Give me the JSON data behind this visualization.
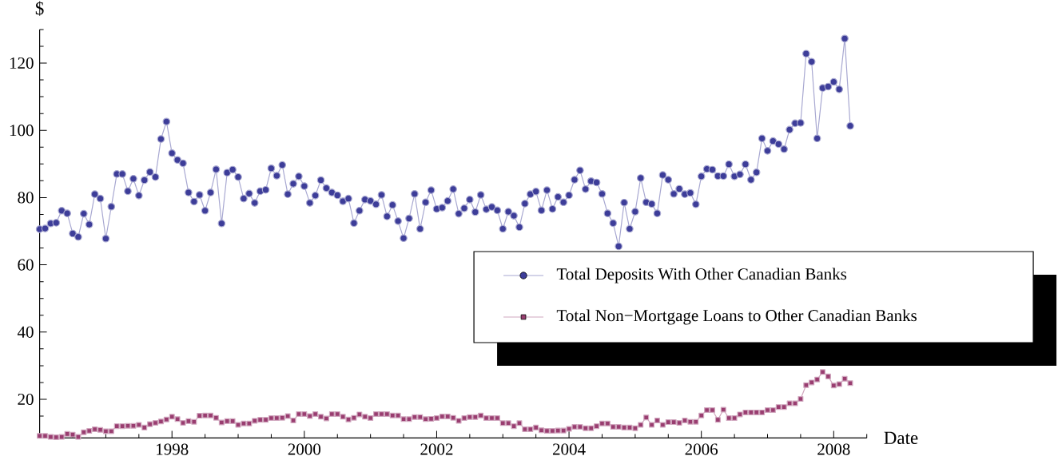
{
  "chart_data": {
    "type": "line",
    "xlabel": "Date",
    "ylabel": "$",
    "legend": "right",
    "marker": "square",
    "xlim": [
      "1996-01",
      "2008-07"
    ],
    "ylim": [
      8.5,
      130
    ],
    "xticks": [
      {
        "value": "1996-07",
        "label": null
      },
      {
        "value": "1997-01",
        "label": null
      },
      {
        "value": "1997-07",
        "label": null
      },
      "1998",
      {
        "value": "1998-07",
        "label": null
      },
      {
        "value": "1999-01",
        "label": null
      },
      {
        "value": "1999-07",
        "label": null
      },
      "2000",
      {
        "value": "2000-07",
        "label": null
      },
      {
        "value": "2001-01",
        "label": null
      },
      {
        "value": "2001-07",
        "label": null
      },
      "2002",
      {
        "value": "2002-07",
        "label": null
      },
      {
        "value": "2003-01",
        "label": null
      },
      {
        "value": "2003-07",
        "label": null
      },
      "2004",
      {
        "value": "2004-07",
        "label": null
      },
      {
        "value": "2005-01",
        "label": null
      },
      {
        "value": "2005-07",
        "label": null
      },
      "2006",
      {
        "value": "2006-07",
        "label": null
      },
      {
        "value": "2007-01",
        "label": null
      },
      {
        "value": "2007-07",
        "label": null
      },
      "2008",
      {
        "value": "2008-07",
        "label": null
      }
    ],
    "yticks": [
      {
        "value": 15,
        "label": null
      },
      20,
      {
        "value": 25,
        "label": null
      },
      {
        "value": 30,
        "label": null
      },
      {
        "value": 35,
        "label": null
      },
      40,
      {
        "value": 45,
        "label": null
      },
      {
        "value": 50,
        "label": null
      },
      {
        "value": 55,
        "label": null
      },
      60,
      {
        "value": 65,
        "label": null
      },
      {
        "value": 70,
        "label": null
      },
      {
        "value": 75,
        "label": null
      },
      80,
      {
        "value": 85,
        "label": null
      },
      {
        "value": 90,
        "label": null
      },
      {
        "value": 95,
        "label": null
      },
      100,
      {
        "value": 105,
        "label": null
      },
      {
        "value": 110,
        "label": null
      },
      {
        "value": 115,
        "label": null
      },
      120,
      {
        "value": 125,
        "label": null
      },
      {
        "value": 130,
        "label": null
      }
    ],
    "x": [
      "1996-01",
      "1996-02",
      "1996-03",
      "1996-04",
      "1996-05",
      "1996-06",
      "1996-07",
      "1996-08",
      "1996-09",
      "1996-10",
      "1996-11",
      "1996-12",
      "1997-01",
      "1997-02",
      "1997-03",
      "1997-04",
      "1997-05",
      "1997-06",
      "1997-07",
      "1997-08",
      "1997-09",
      "1997-10",
      "1997-11",
      "1997-12",
      "1998-01",
      "1998-02",
      "1998-03",
      "1998-04",
      "1998-05",
      "1998-06",
      "1998-07",
      "1998-08",
      "1998-09",
      "1998-10",
      "1998-11",
      "1998-12",
      "1999-01",
      "1999-02",
      "1999-03",
      "1999-04",
      "1999-05",
      "1999-06",
      "1999-07",
      "1999-08",
      "1999-09",
      "1999-10",
      "1999-11",
      "1999-12",
      "2000-01",
      "2000-02",
      "2000-03",
      "2000-04",
      "2000-05",
      "2000-06",
      "2000-07",
      "2000-08",
      "2000-09",
      "2000-10",
      "2000-11",
      "2000-12",
      "2001-01",
      "2001-02",
      "2001-03",
      "2001-04",
      "2001-05",
      "2001-06",
      "2001-07",
      "2001-08",
      "2001-09",
      "2001-10",
      "2001-11",
      "2001-12",
      "2002-01",
      "2002-02",
      "2002-03",
      "2002-04",
      "2002-05",
      "2002-06",
      "2002-07",
      "2002-08",
      "2002-09",
      "2002-10",
      "2002-11",
      "2002-12",
      "2003-01",
      "2003-02",
      "2003-03",
      "2003-04",
      "2003-05",
      "2003-06",
      "2003-07",
      "2003-08",
      "2003-09",
      "2003-10",
      "2003-11",
      "2003-12",
      "2004-01",
      "2004-02",
      "2004-03",
      "2004-04",
      "2004-05",
      "2004-06",
      "2004-07",
      "2004-08",
      "2004-09",
      "2004-10",
      "2004-11",
      "2004-12",
      "2005-01",
      "2005-02",
      "2005-03",
      "2005-04",
      "2005-05",
      "2005-06",
      "2005-07",
      "2005-08",
      "2005-09",
      "2005-10",
      "2005-11",
      "2005-12",
      "2006-01",
      "2006-02",
      "2006-03",
      "2006-04",
      "2006-05",
      "2006-06",
      "2006-07",
      "2006-08",
      "2006-09",
      "2006-10",
      "2006-11",
      "2006-12",
      "2007-01",
      "2007-02",
      "2007-03",
      "2007-04",
      "2007-05",
      "2007-06",
      "2007-07",
      "2007-08",
      "2007-09",
      "2007-10",
      "2007-11",
      "2007-12",
      "2008-01",
      "2008-02",
      "2008-03",
      "2008-04"
    ],
    "series": [
      {
        "name": "Total Deposits With Other Canadian Banks",
        "color": "#3d3d99",
        "marker": "circle",
        "values": [
          70.6,
          70.8,
          72.3,
          72.5,
          76.1,
          75.3,
          69.3,
          68.3,
          75.2,
          72.0,
          81.0,
          79.7,
          67.8,
          77.3,
          87.0,
          87.0,
          81.9,
          85.6,
          80.6,
          85.2,
          87.6,
          86.1,
          97.4,
          102.6,
          93.2,
          91.2,
          90.2,
          81.5,
          78.8,
          80.8,
          76.1,
          81.5,
          88.4,
          72.3,
          87.4,
          88.3,
          86.1,
          79.7,
          81.2,
          78.4,
          81.9,
          82.3,
          88.7,
          86.5,
          89.7,
          81.0,
          84.1,
          86.3,
          83.4,
          78.4,
          80.6,
          85.2,
          82.8,
          81.5,
          80.7,
          78.9,
          79.7,
          72.4,
          76.1,
          79.4,
          79.0,
          78.0,
          80.8,
          74.4,
          77.8,
          73.0,
          67.9,
          73.8,
          81.1,
          70.7,
          78.6,
          82.2,
          76.6,
          77.0,
          79.0,
          82.5,
          75.2,
          76.8,
          79.4,
          75.7,
          80.8,
          76.5,
          77.2,
          76.2,
          70.7,
          75.8,
          74.6,
          71.2,
          78.2,
          81.0,
          81.8,
          76.2,
          82.2,
          76.6,
          80.2,
          78.6,
          80.7,
          85.3,
          88.1,
          82.5,
          84.9,
          84.5,
          81.1,
          75.3,
          72.4,
          65.5,
          78.5,
          70.7,
          75.8,
          85.8,
          78.6,
          78.1,
          75.3,
          86.7,
          85.3,
          81.1,
          82.6,
          81.0,
          81.4,
          78.0,
          86.3,
          88.5,
          88.3,
          86.4,
          86.4,
          89.9,
          86.3,
          86.9,
          89.9,
          85.3,
          87.5,
          97.6,
          93.9,
          96.8,
          95.9,
          94.4,
          100.2,
          102.1,
          102.2,
          122.8,
          120.4,
          97.6,
          112.6,
          113.0,
          114.4,
          112.2,
          127.3,
          101.3
        ]
      },
      {
        "name": "Total Non−Mortgage Loans to Other Canadian Banks",
        "color": "#993d70",
        "values": [
          9.1,
          9.1,
          8.8,
          8.7,
          8.8,
          9.7,
          9.5,
          8.8,
          10.2,
          10.6,
          11.1,
          10.9,
          10.5,
          10.5,
          12.0,
          12.0,
          12.1,
          12.1,
          12.4,
          11.6,
          12.6,
          13.0,
          13.4,
          14.0,
          14.8,
          14.1,
          13.0,
          13.5,
          13.3,
          15.1,
          15.2,
          15.2,
          14.5,
          13.1,
          13.5,
          13.5,
          12.4,
          12.8,
          12.8,
          13.6,
          13.9,
          13.9,
          14.4,
          14.4,
          14.5,
          15.0,
          13.7,
          15.6,
          15.6,
          15.0,
          15.6,
          14.8,
          14.3,
          15.6,
          15.6,
          14.8,
          14.0,
          14.5,
          15.5,
          14.8,
          14.4,
          15.6,
          15.6,
          15.6,
          15.2,
          15.2,
          14.1,
          14.1,
          14.7,
          14.7,
          14.1,
          14.2,
          14.4,
          14.9,
          14.9,
          14.5,
          13.6,
          14.4,
          14.7,
          14.7,
          15.2,
          14.4,
          14.4,
          14.4,
          12.9,
          12.9,
          12.0,
          12.9,
          11.1,
          11.1,
          11.6,
          10.8,
          10.6,
          10.6,
          10.7,
          10.7,
          11.2,
          11.8,
          11.8,
          11.4,
          11.4,
          12.0,
          12.8,
          12.8,
          11.8,
          11.8,
          11.6,
          11.6,
          11.4,
          12.4,
          14.6,
          12.4,
          13.7,
          12.4,
          13.2,
          13.2,
          13.0,
          13.7,
          13.3,
          13.3,
          15.2,
          16.8,
          16.8,
          13.9,
          16.9,
          14.4,
          14.4,
          15.5,
          16.1,
          16.1,
          16.1,
          16.1,
          16.8,
          16.8,
          17.7,
          17.7,
          18.8,
          18.8,
          20.1,
          24.2,
          25.0,
          25.9,
          28.1,
          26.8,
          24.1,
          24.5,
          26.1,
          24.8
        ]
      }
    ]
  }
}
